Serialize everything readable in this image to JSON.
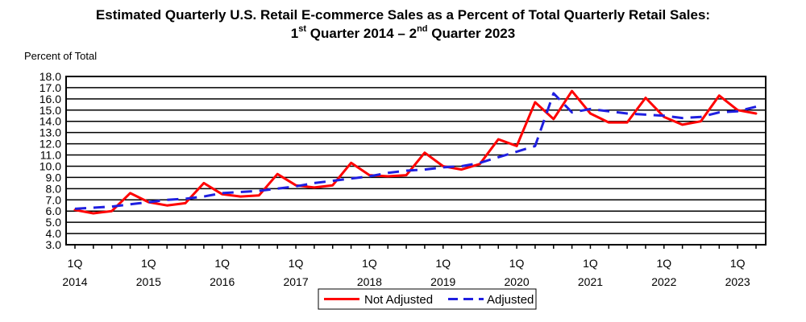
{
  "title_line1": "Estimated Quarterly U.S. Retail E-commerce Sales as a Percent of Total Quarterly Retail Sales:",
  "title_line2": {
    "start_num": "1",
    "start_sup": "st",
    "start_rest": " Quarter 2014 – 2",
    "end_sup": "nd",
    "end_rest": " Quarter 2023"
  },
  "colors": {
    "not_adjusted": "#ff0000",
    "adjusted": "#1f1fe0"
  },
  "chart_data": {
    "type": "line",
    "ylabel": "Percent of Total",
    "ylim": [
      3.0,
      18.0
    ],
    "yticks": [
      "3.0",
      "4.0",
      "5.0",
      "6.0",
      "7.0",
      "8.0",
      "9.0",
      "10.0",
      "11.0",
      "12.0",
      "13.0",
      "14.0",
      "15.0",
      "16.0",
      "17.0",
      "18.0"
    ],
    "grid": true,
    "legend_position": "bottom-center",
    "xticks": [
      {
        "quarter": "1Q",
        "year": "2014"
      },
      {
        "quarter": "1Q",
        "year": "2015"
      },
      {
        "quarter": "1Q",
        "year": "2016"
      },
      {
        "quarter": "1Q",
        "year": "2017"
      },
      {
        "quarter": "1Q",
        "year": "2018"
      },
      {
        "quarter": "1Q",
        "year": "2019"
      },
      {
        "quarter": "1Q",
        "year": "2020"
      },
      {
        "quarter": "1Q",
        "year": "2021"
      },
      {
        "quarter": "1Q",
        "year": "2022"
      },
      {
        "quarter": "1Q",
        "year": "2023"
      }
    ],
    "x": [
      "2014 Q1",
      "2014 Q2",
      "2014 Q3",
      "2014 Q4",
      "2015 Q1",
      "2015 Q2",
      "2015 Q3",
      "2015 Q4",
      "2016 Q1",
      "2016 Q2",
      "2016 Q3",
      "2016 Q4",
      "2017 Q1",
      "2017 Q2",
      "2017 Q3",
      "2017 Q4",
      "2018 Q1",
      "2018 Q2",
      "2018 Q3",
      "2018 Q4",
      "2019 Q1",
      "2019 Q2",
      "2019 Q3",
      "2019 Q4",
      "2020 Q1",
      "2020 Q2",
      "2020 Q3",
      "2020 Q4",
      "2021 Q1",
      "2021 Q2",
      "2021 Q3",
      "2021 Q4",
      "2022 Q1",
      "2022 Q2",
      "2022 Q3",
      "2022 Q4",
      "2023 Q1",
      "2023 Q2"
    ],
    "series": [
      {
        "name": "Not Adjusted",
        "style": "solid",
        "values": [
          6.1,
          5.8,
          6.0,
          7.6,
          6.8,
          6.5,
          6.7,
          8.5,
          7.5,
          7.3,
          7.4,
          9.3,
          8.3,
          8.1,
          8.3,
          10.3,
          9.2,
          9.1,
          9.2,
          11.2,
          10.0,
          9.7,
          10.2,
          12.4,
          11.8,
          15.7,
          14.2,
          16.7,
          14.7,
          13.9,
          13.9,
          16.1,
          14.4,
          13.7,
          14.0,
          16.3,
          15.0,
          14.7
        ]
      },
      {
        "name": "Adjusted",
        "style": "dashed",
        "values": [
          6.2,
          6.3,
          6.4,
          6.6,
          6.8,
          7.0,
          7.1,
          7.3,
          7.6,
          7.7,
          7.8,
          8.0,
          8.2,
          8.5,
          8.7,
          8.9,
          9.1,
          9.4,
          9.6,
          9.7,
          9.9,
          10.0,
          10.3,
          10.8,
          11.3,
          11.8,
          16.5,
          14.8,
          15.1,
          14.9,
          14.7,
          14.6,
          14.5,
          14.3,
          14.4,
          14.8,
          14.9,
          15.3
        ]
      }
    ]
  }
}
